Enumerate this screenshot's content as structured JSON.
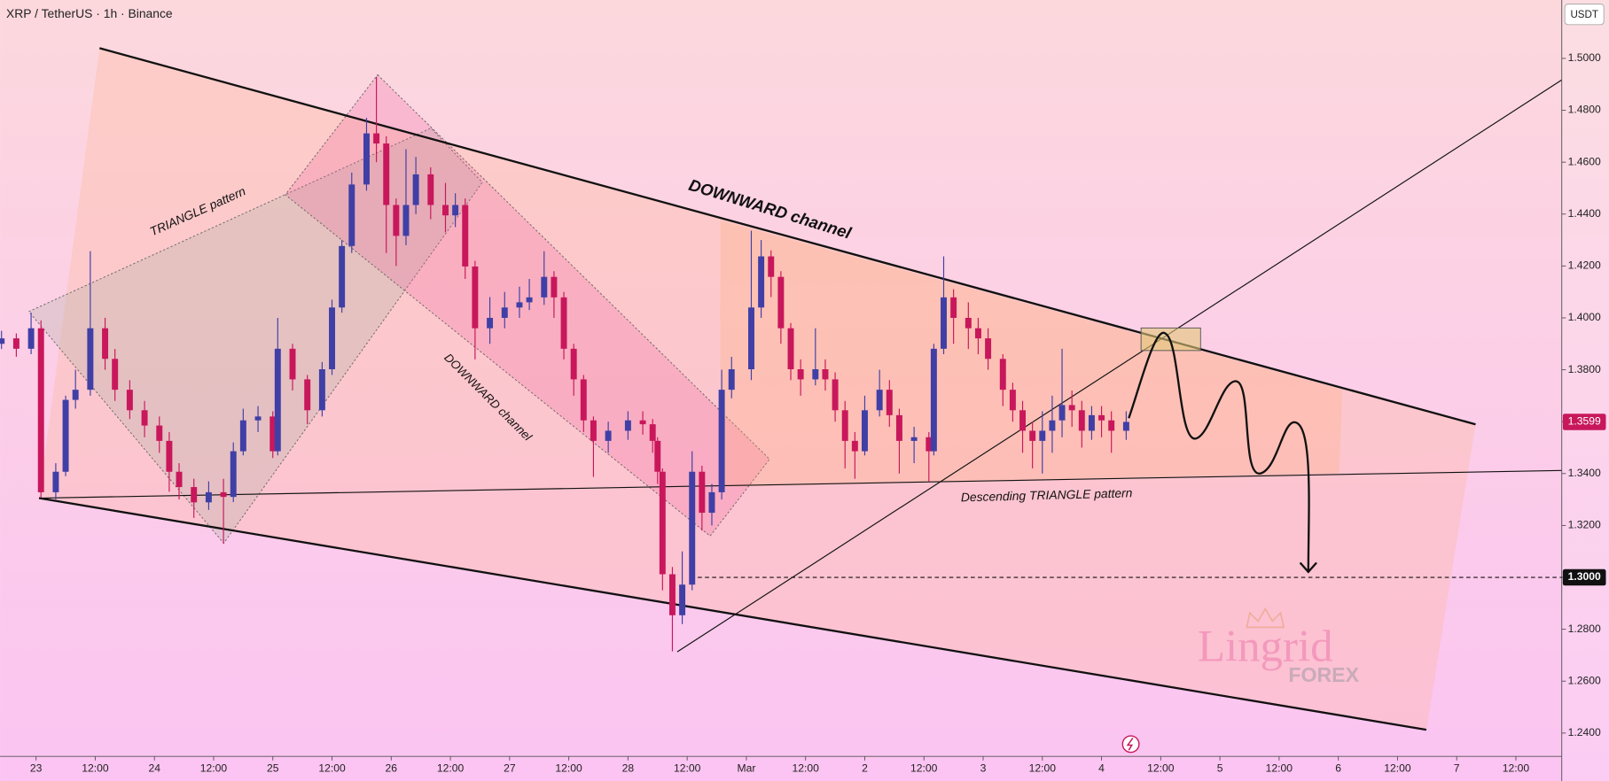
{
  "chart_data": {
    "type": "candlestick",
    "title": "XRP / TetherUS · 1h · Binance",
    "y_unit": "USDT",
    "xlim": [
      -7.3,
      309.3
    ],
    "ylim": [
      1.231,
      1.5225
    ],
    "xticks": [
      {
        "value": 0,
        "label": "23"
      },
      {
        "value": 12,
        "label": "12:00"
      },
      {
        "value": 24,
        "label": "24"
      },
      {
        "value": 36,
        "label": "12:00"
      },
      {
        "value": 48,
        "label": "25"
      },
      {
        "value": 60,
        "label": "12:00"
      },
      {
        "value": 72,
        "label": "26"
      },
      {
        "value": 84,
        "label": "12:00"
      },
      {
        "value": 96,
        "label": "27"
      },
      {
        "value": 108,
        "label": "12:00"
      },
      {
        "value": 120,
        "label": "28"
      },
      {
        "value": 132,
        "label": "12:00"
      },
      {
        "value": 144,
        "label": "Mar"
      },
      {
        "value": 156,
        "label": "12:00"
      },
      {
        "value": 168,
        "label": "2"
      },
      {
        "value": 180,
        "label": "12:00"
      },
      {
        "value": 192,
        "label": "3"
      },
      {
        "value": 204,
        "label": "12:00"
      },
      {
        "value": 216,
        "label": "4"
      },
      {
        "value": 228,
        "label": "12:00"
      },
      {
        "value": 240,
        "label": "5"
      },
      {
        "value": 252,
        "label": "12:00"
      },
      {
        "value": 264,
        "label": "6"
      },
      {
        "value": 276,
        "label": "12:00"
      },
      {
        "value": 288,
        "label": "7"
      },
      {
        "value": 300,
        "label": "12:00"
      }
    ],
    "yticks": [
      {
        "value": 1.24,
        "label": "1.2400"
      },
      {
        "value": 1.26,
        "label": "1.2600"
      },
      {
        "value": 1.28,
        "label": "1.2800"
      },
      {
        "value": 1.3,
        "label": "1.3000"
      },
      {
        "value": 1.32,
        "label": "1.3200"
      },
      {
        "value": 1.34,
        "label": "1.3400"
      },
      {
        "value": 1.36,
        "label": "1.3600"
      },
      {
        "value": 1.38,
        "label": "1.3800"
      },
      {
        "value": 1.4,
        "label": "1.4000"
      },
      {
        "value": 1.42,
        "label": "1.4200"
      },
      {
        "value": 1.44,
        "label": "1.4400"
      },
      {
        "value": 1.46,
        "label": "1.4600"
      },
      {
        "value": 1.48,
        "label": "1.4800"
      },
      {
        "value": 1.5,
        "label": "1.5000"
      }
    ],
    "up_color": "#3f3fa6",
    "down_color": "#c8175b",
    "x": [
      -7,
      -4,
      -1,
      1,
      4,
      6,
      8,
      11,
      14,
      16,
      19,
      22,
      25,
      27,
      29,
      32,
      35,
      38,
      40,
      42,
      45,
      48,
      49,
      52,
      55,
      58,
      60,
      62,
      64,
      67,
      69,
      71,
      73,
      75,
      77,
      80,
      83,
      85,
      87,
      89,
      92,
      95,
      98,
      100,
      103,
      105,
      107,
      109,
      111,
      113,
      116,
      120,
      123,
      125,
      126,
      127,
      129,
      131,
      133,
      135,
      137,
      139,
      141,
      145,
      147,
      149,
      151,
      153,
      155,
      158,
      160,
      162,
      164,
      166,
      168,
      171,
      173,
      175,
      178,
      181,
      182,
      184,
      186,
      189,
      191,
      193,
      196,
      198,
      200,
      202,
      204,
      206,
      208,
      210,
      212,
      214,
      216,
      218,
      221
    ],
    "open": [
      1.39,
      1.3921,
      1.3881,
      1.396,
      1.3328,
      1.3407,
      1.3684,
      1.3723,
      1.396,
      1.3842,
      1.3723,
      1.3644,
      1.3585,
      1.3526,
      1.3407,
      1.3348,
      1.3289,
      1.3328,
      1.331,
      1.3486,
      1.3605,
      1.362,
      1.3486,
      1.3881,
      1.3763,
      1.3644,
      1.3802,
      1.404,
      1.4277,
      1.4514,
      1.4711,
      1.4672,
      1.4435,
      1.4316,
      1.4435,
      1.4553,
      1.4435,
      1.4395,
      1.4435,
      1.4198,
      1.396,
      1.4,
      1.404,
      1.406,
      1.4079,
      1.4158,
      1.4079,
      1.3881,
      1.3763,
      1.3605,
      1.3526,
      1.3565,
      1.3605,
      1.359,
      1.3526,
      1.3407,
      1.3012,
      1.2854,
      1.2972,
      1.3407,
      1.3249,
      1.3328,
      1.3723,
      1.3802,
      1.404,
      1.4237,
      1.4158,
      1.396,
      1.3802,
      1.3763,
      1.3802,
      1.3763,
      1.3644,
      1.3526,
      1.3486,
      1.3644,
      1.3723,
      1.3625,
      1.3526,
      1.354,
      1.3486,
      1.3881,
      1.4079,
      1.4,
      1.396,
      1.3921,
      1.3842,
      1.3723,
      1.3644,
      1.3565,
      1.3526,
      1.3565,
      1.3605,
      1.3664,
      1.3644,
      1.3565,
      1.3625,
      1.3605,
      1.3565
    ],
    "high": [
      1.395,
      1.394,
      1.402,
      1.399,
      1.344,
      1.37,
      1.38,
      1.4257,
      1.4,
      1.388,
      1.376,
      1.368,
      1.362,
      1.356,
      1.344,
      1.338,
      1.337,
      1.338,
      1.352,
      1.365,
      1.366,
      1.364,
      1.4,
      1.39,
      1.378,
      1.383,
      1.407,
      1.43,
      1.456,
      1.4771,
      1.4929,
      1.47,
      1.446,
      1.465,
      1.462,
      1.458,
      1.452,
      1.448,
      1.446,
      1.422,
      1.408,
      1.41,
      1.412,
      1.415,
      1.4257,
      1.418,
      1.41,
      1.39,
      1.378,
      1.362,
      1.36,
      1.364,
      1.364,
      1.361,
      1.354,
      1.342,
      1.304,
      1.31,
      1.3486,
      1.343,
      1.336,
      1.38,
      1.385,
      1.4336,
      1.43,
      1.426,
      1.418,
      1.398,
      1.384,
      1.396,
      1.384,
      1.379,
      1.368,
      1.356,
      1.37,
      1.38,
      1.376,
      1.365,
      1.358,
      1.356,
      1.39,
      1.4237,
      1.411,
      1.406,
      1.4,
      1.396,
      1.386,
      1.375,
      1.368,
      1.36,
      1.364,
      1.37,
      1.3881,
      1.372,
      1.368,
      1.366,
      1.366,
      1.364,
      1.364
    ],
    "low": [
      1.388,
      1.385,
      1.386,
      1.3308,
      1.33,
      1.339,
      1.365,
      1.37,
      1.38,
      1.368,
      1.361,
      1.354,
      1.348,
      1.333,
      1.33,
      1.3229,
      1.326,
      1.313,
      1.329,
      1.347,
      1.356,
      1.346,
      1.347,
      1.372,
      1.359,
      1.362,
      1.378,
      1.402,
      1.425,
      1.449,
      1.46,
      1.425,
      1.42,
      1.428,
      1.44,
      1.438,
      1.433,
      1.435,
      1.415,
      1.384,
      1.39,
      1.396,
      1.4,
      1.403,
      1.405,
      1.4,
      1.384,
      1.37,
      1.356,
      1.3387,
      1.348,
      1.353,
      1.355,
      1.348,
      1.336,
      1.295,
      1.2715,
      1.282,
      1.295,
      1.318,
      1.32,
      1.33,
      1.369,
      1.376,
      1.4,
      1.408,
      1.39,
      1.376,
      1.37,
      1.374,
      1.372,
      1.36,
      1.342,
      1.338,
      1.347,
      1.362,
      1.358,
      1.34,
      1.344,
      1.3368,
      1.347,
      1.386,
      1.39,
      1.388,
      1.386,
      1.38,
      1.366,
      1.36,
      1.348,
      1.342,
      1.34,
      1.348,
      1.354,
      1.358,
      1.35,
      1.353,
      1.354,
      1.348,
      1.353
    ],
    "close": [
      1.3921,
      1.3881,
      1.396,
      1.3328,
      1.3407,
      1.3684,
      1.3723,
      1.396,
      1.3842,
      1.3723,
      1.3644,
      1.3585,
      1.3526,
      1.3407,
      1.3348,
      1.3289,
      1.3328,
      1.331,
      1.3486,
      1.3605,
      1.362,
      1.3486,
      1.3881,
      1.3763,
      1.3644,
      1.3802,
      1.404,
      1.4277,
      1.4514,
      1.4711,
      1.4672,
      1.4435,
      1.4316,
      1.4435,
      1.4553,
      1.4435,
      1.4395,
      1.4435,
      1.4198,
      1.396,
      1.4,
      1.404,
      1.406,
      1.4079,
      1.4158,
      1.4079,
      1.3881,
      1.3763,
      1.3605,
      1.3526,
      1.3565,
      1.3605,
      1.359,
      1.3526,
      1.3407,
      1.3012,
      1.2854,
      1.2972,
      1.3407,
      1.3249,
      1.3328,
      1.3723,
      1.3802,
      1.404,
      1.4237,
      1.4158,
      1.396,
      1.3802,
      1.3763,
      1.3802,
      1.3763,
      1.3644,
      1.3526,
      1.3486,
      1.3644,
      1.3723,
      1.3625,
      1.3526,
      1.354,
      1.3486,
      1.3881,
      1.4079,
      1.4,
      1.396,
      1.3921,
      1.3842,
      1.3723,
      1.3644,
      1.3565,
      1.3526,
      1.3565,
      1.3605,
      1.3664,
      1.3644,
      1.3565,
      1.3625,
      1.3605,
      1.3565,
      1.3599
    ],
    "last_price": 1.3599,
    "target_level": {
      "value": 1.3,
      "label": "1.3000"
    },
    "annotations": [
      "TRIANGLE pattern",
      "DOWNWARD channel",
      "DOWNWARD channel",
      "Descending TRIANGLE pattern"
    ],
    "watermark": [
      "Lingrid",
      "FOREX"
    ]
  }
}
